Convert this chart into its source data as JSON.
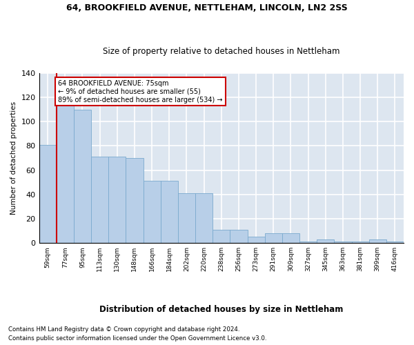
{
  "title1": "64, BROOKFIELD AVENUE, NETTLEHAM, LINCOLN, LN2 2SS",
  "title2": "Size of property relative to detached houses in Nettleham",
  "xlabel": "Distribution of detached houses by size in Nettleham",
  "ylabel": "Number of detached properties",
  "categories": [
    "59sqm",
    "77sqm",
    "95sqm",
    "113sqm",
    "130sqm",
    "148sqm",
    "166sqm",
    "184sqm",
    "202sqm",
    "220sqm",
    "238sqm",
    "256sqm",
    "273sqm",
    "291sqm",
    "309sqm",
    "327sqm",
    "345sqm",
    "363sqm",
    "381sqm",
    "399sqm",
    "416sqm"
  ],
  "values": [
    81,
    114,
    110,
    71,
    71,
    70,
    51,
    51,
    41,
    41,
    11,
    11,
    5,
    8,
    8,
    1,
    3,
    1,
    1,
    3,
    1
  ],
  "bar_color": "#b8cfe8",
  "bar_edge_color": "#7aaace",
  "vline_color": "#cc0000",
  "annotation_text": "64 BROOKFIELD AVENUE: 75sqm\n← 9% of detached houses are smaller (55)\n89% of semi-detached houses are larger (534) →",
  "annotation_box_edgecolor": "#cc0000",
  "bg_color": "#dde6f0",
  "grid_color": "#ffffff",
  "footer1": "Contains HM Land Registry data © Crown copyright and database right 2024.",
  "footer2": "Contains public sector information licensed under the Open Government Licence v3.0.",
  "ylim_max": 140,
  "yticks": [
    0,
    20,
    40,
    60,
    80,
    100,
    120,
    140
  ]
}
